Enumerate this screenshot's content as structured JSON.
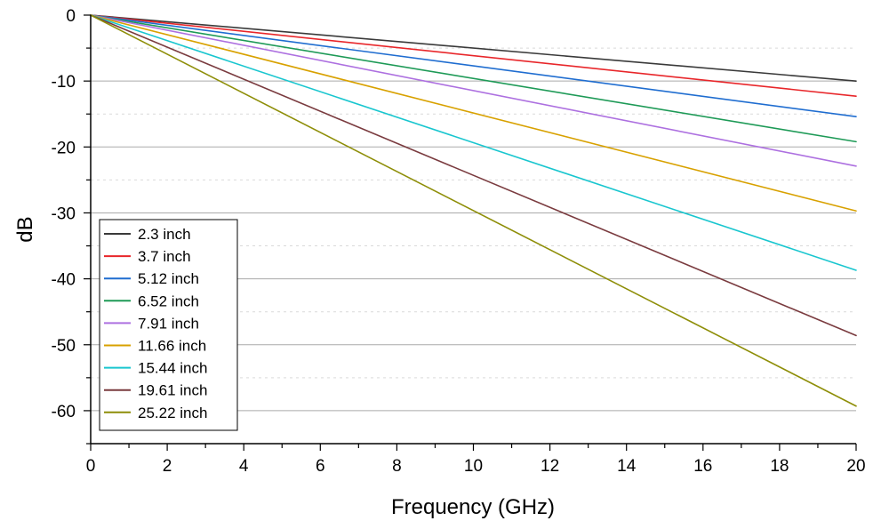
{
  "chart_data": {
    "type": "line",
    "title": "",
    "xlabel": "Frequency (GHz)",
    "ylabel": "dB",
    "xlim": [
      0,
      20
    ],
    "ylim": [
      -65,
      0
    ],
    "xticks": [
      0,
      2,
      4,
      6,
      8,
      10,
      12,
      14,
      16,
      18,
      20
    ],
    "yticks": [
      0,
      -10,
      -20,
      -30,
      -40,
      -50,
      -60
    ],
    "grid": "horizontal major lines",
    "legend_position": "bottom-left",
    "series": [
      {
        "name": "2.3 inch",
        "color": "#3a3a3a",
        "x": [
          0,
          20
        ],
        "y": [
          0,
          -10.0
        ]
      },
      {
        "name": "3.7 inch",
        "color": "#e8262a",
        "x": [
          0,
          20
        ],
        "y": [
          0,
          -12.3
        ]
      },
      {
        "name": "5.12 inch",
        "color": "#1f6dd0",
        "x": [
          0,
          20
        ],
        "y": [
          0,
          -15.4
        ]
      },
      {
        "name": "6.52 inch",
        "color": "#1e9a57",
        "x": [
          0,
          20
        ],
        "y": [
          0,
          -19.2
        ]
      },
      {
        "name": "7.91 inch",
        "color": "#ad70e0",
        "x": [
          0,
          20
        ],
        "y": [
          0,
          -22.9
        ]
      },
      {
        "name": "11.66 inch",
        "color": "#d8a100",
        "x": [
          0,
          20
        ],
        "y": [
          0,
          -29.7
        ]
      },
      {
        "name": "15.44 inch",
        "color": "#19c6cf",
        "x": [
          0,
          20
        ],
        "y": [
          0,
          -38.7
        ]
      },
      {
        "name": "19.61 inch",
        "color": "#7a3b3f",
        "x": [
          0,
          20
        ],
        "y": [
          0,
          -48.6
        ]
      },
      {
        "name": "25.22 inch",
        "color": "#8e8e08",
        "x": [
          0,
          20
        ],
        "y": [
          0,
          -59.3
        ]
      }
    ]
  }
}
